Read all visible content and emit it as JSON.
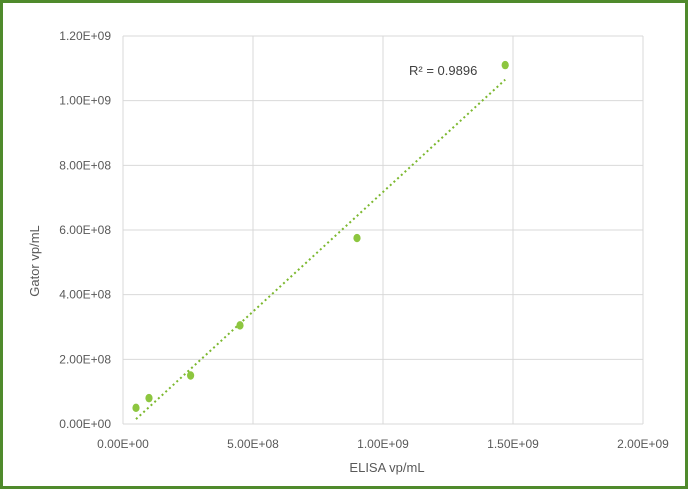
{
  "chart_data": {
    "type": "scatter",
    "title": "",
    "xlabel": "ELISA vp/mL",
    "ylabel": "Gator vp/mL",
    "xlim": [
      0,
      2000000000
    ],
    "ylim": [
      0,
      1200000000
    ],
    "x_ticks": [
      0,
      500000000,
      1000000000,
      1500000000,
      2000000000
    ],
    "x_tick_labels": [
      "0.00E+00",
      "5.00E+08",
      "1.00E+09",
      "1.50E+09",
      "2.00E+09"
    ],
    "y_ticks": [
      0,
      200000000,
      400000000,
      600000000,
      800000000,
      1000000000,
      1200000000
    ],
    "y_tick_labels": [
      "0.00E+00",
      "2.00E+08",
      "4.00E+08",
      "6.00E+08",
      "8.00E+08",
      "1.00E+09",
      "1.20E+09"
    ],
    "grid": true,
    "legend": "none",
    "series": [
      {
        "x": [
          50000000.0,
          100000000.0,
          260000000.0,
          450000000.0,
          900000000.0,
          1470000000.0
        ],
        "y": [
          50000000.0,
          80000000.0,
          150000000.0,
          305000000.0,
          575000000.0,
          1110000000.0
        ]
      }
    ],
    "trendline": {
      "type": "linear",
      "x": [
        50000000.0,
        1470000000.0
      ],
      "y": [
        15000000.0,
        1065000000.0
      ],
      "label": "R² = 0.9896"
    },
    "colors": {
      "points": "#8dc63f",
      "trendline": "#7cb82f",
      "grid": "#d9d9d9",
      "frame": "#4f8a2c",
      "text": "#595959"
    }
  }
}
